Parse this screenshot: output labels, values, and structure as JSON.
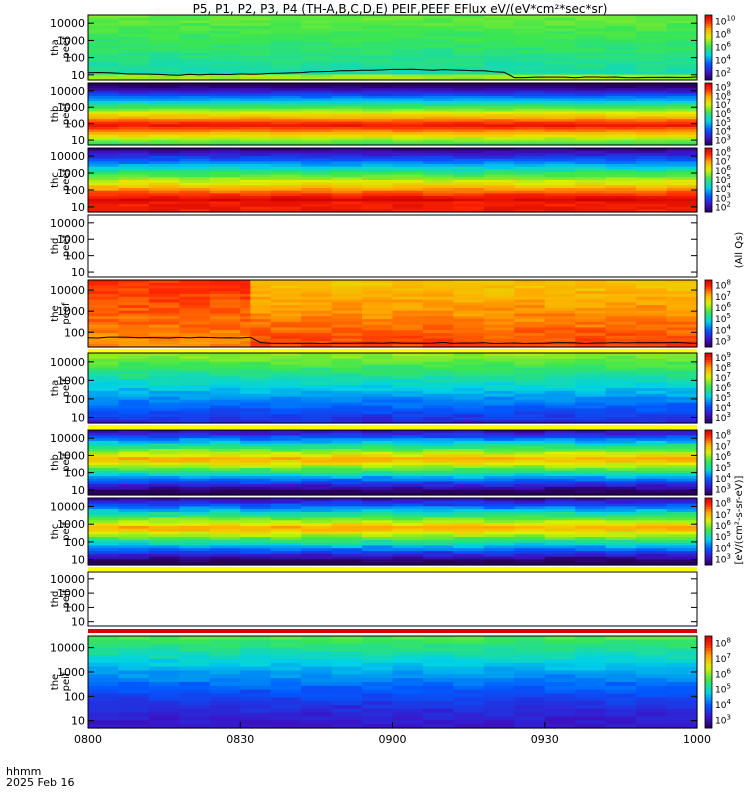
{
  "chart_data": {
    "type": "heatmap",
    "title": "P5, P1, P2, P3, P4 (TH-A,B,C,D,E) PEIF,PEEF EFlux eV/(eV*cm²*sec*sr)",
    "footer": {
      "x_axis_label": "hhmm",
      "date_label": "2025 Feb 16",
      "x_ticks": [
        "0800",
        "0830",
        "0900",
        "0930",
        "1000"
      ],
      "x_range": [
        "0800",
        "1000"
      ]
    },
    "colorbar_unit_label": "[eV/(cm²-s-sr-eV)]",
    "colorbar_extra_label": "(All Qs)",
    "panels": [
      {
        "id": "tha_peef",
        "label": [
          "tha",
          "peef"
        ],
        "y_ticks": [
          "10",
          "100",
          "1000",
          "10000"
        ],
        "y_range": [
          5,
          30000
        ],
        "log_y": true,
        "data_present": true,
        "profile": "green-high",
        "has_curve": true,
        "bottom_stripe": "none",
        "colorbar": {
          "exponents": [
            "10",
            "8",
            "6",
            "4",
            "2"
          ]
        }
      },
      {
        "id": "thb_peef",
        "label": [
          "thb",
          "peef"
        ],
        "y_ticks": [
          "10",
          "100",
          "1000",
          "10000"
        ],
        "y_range": [
          5,
          30000
        ],
        "log_y": true,
        "data_present": true,
        "profile": "red-broad",
        "has_curve": false,
        "bottom_stripe": "none",
        "colorbar": {
          "exponents": [
            "9",
            "8",
            "7",
            "6",
            "5",
            "4",
            "3"
          ]
        }
      },
      {
        "id": "thc_peef",
        "label": [
          "thc",
          "peef"
        ],
        "y_ticks": [
          "10",
          "100",
          "1000",
          "10000"
        ],
        "y_range": [
          5,
          30000
        ],
        "log_y": true,
        "data_present": true,
        "profile": "red-low",
        "has_curve": false,
        "bottom_stripe": "none",
        "colorbar": {
          "exponents": [
            "8",
            "7",
            "6",
            "5",
            "4",
            "3",
            "2"
          ]
        }
      },
      {
        "id": "thd_peef",
        "label": [
          "thd",
          "peef"
        ],
        "y_ticks": [
          "10",
          "100",
          "1000",
          "10000"
        ],
        "y_range": [
          5,
          30000
        ],
        "log_y": true,
        "data_present": false,
        "profile": "none",
        "has_curve": false,
        "bottom_stripe": "none",
        "colorbar": null
      },
      {
        "id": "the_peef",
        "label": [
          "the",
          "peef"
        ],
        "y_ticks": [
          "100",
          "1000",
          "10000"
        ],
        "y_range": [
          20,
          30000
        ],
        "log_y": true,
        "data_present": true,
        "profile": "orange-high",
        "has_curve": true,
        "bottom_stripe": "yellow",
        "colorbar": {
          "exponents": [
            "8",
            "7",
            "6",
            "5",
            "4",
            "3"
          ]
        }
      },
      {
        "id": "tha_peif",
        "label": [
          "tha",
          "peif"
        ],
        "y_ticks": [
          "10",
          "100",
          "1000",
          "10000"
        ],
        "y_range": [
          5,
          30000
        ],
        "log_y": true,
        "data_present": true,
        "profile": "ion-green",
        "has_curve": false,
        "bottom_stripe": "yellow",
        "colorbar": {
          "exponents": [
            "9",
            "8",
            "7",
            "6",
            "5",
            "4",
            "3"
          ]
        }
      },
      {
        "id": "thb_peif",
        "label": [
          "thb",
          "peif"
        ],
        "y_ticks": [
          "10",
          "100",
          "1000",
          "10000"
        ],
        "y_range": [
          5,
          30000
        ],
        "log_y": true,
        "data_present": true,
        "profile": "ion-band",
        "has_curve": false,
        "bottom_stripe": "none",
        "colorbar": {
          "exponents": [
            "8",
            "7",
            "6",
            "5",
            "4",
            "3"
          ]
        }
      },
      {
        "id": "thc_peif",
        "label": [
          "thc",
          "peif"
        ],
        "y_ticks": [
          "10",
          "100",
          "1000",
          "10000"
        ],
        "y_range": [
          5,
          30000
        ],
        "log_y": true,
        "data_present": true,
        "profile": "ion-band",
        "has_curve": false,
        "bottom_stripe": "yellow",
        "colorbar": {
          "exponents": [
            "8",
            "7",
            "6",
            "5",
            "4",
            "3"
          ]
        }
      },
      {
        "id": "thd_peif",
        "label": [
          "thd",
          "peif"
        ],
        "y_ticks": [
          "10",
          "100",
          "1000",
          "10000"
        ],
        "y_range": [
          5,
          30000
        ],
        "log_y": true,
        "data_present": false,
        "profile": "none",
        "has_curve": false,
        "bottom_stripe": "red",
        "colorbar": null
      },
      {
        "id": "the_peif",
        "label": [
          "the",
          "peif"
        ],
        "y_ticks": [
          "10",
          "100",
          "1000",
          "10000"
        ],
        "y_range": [
          5,
          30000
        ],
        "log_y": true,
        "data_present": true,
        "profile": "ion-blue",
        "has_curve": false,
        "bottom_stripe": "none",
        "colorbar": {
          "exponents": [
            "8",
            "7",
            "6",
            "5",
            "4",
            "3"
          ]
        }
      }
    ]
  }
}
